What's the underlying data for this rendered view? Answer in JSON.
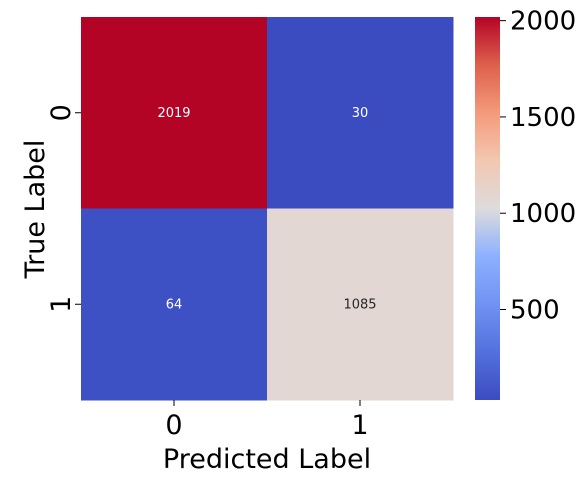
{
  "chart_data": {
    "type": "heatmap",
    "title": "",
    "xlabel": "Predicted Label",
    "ylabel": "True Label",
    "x_categories": [
      "0",
      "1"
    ],
    "y_categories": [
      "0",
      "1"
    ],
    "values": [
      [
        2019,
        30
      ],
      [
        64,
        1085
      ]
    ],
    "colormap": "coolwarm",
    "colorbar": {
      "range": [
        30,
        2019
      ],
      "ticks": [
        500,
        1000,
        1500,
        2000
      ],
      "tick_labels": [
        "500",
        "1000",
        "1500",
        "2000"
      ]
    },
    "colors": {
      "low": "#3b4cc0",
      "mid": "#dddddd",
      "high": "#b40426"
    }
  }
}
